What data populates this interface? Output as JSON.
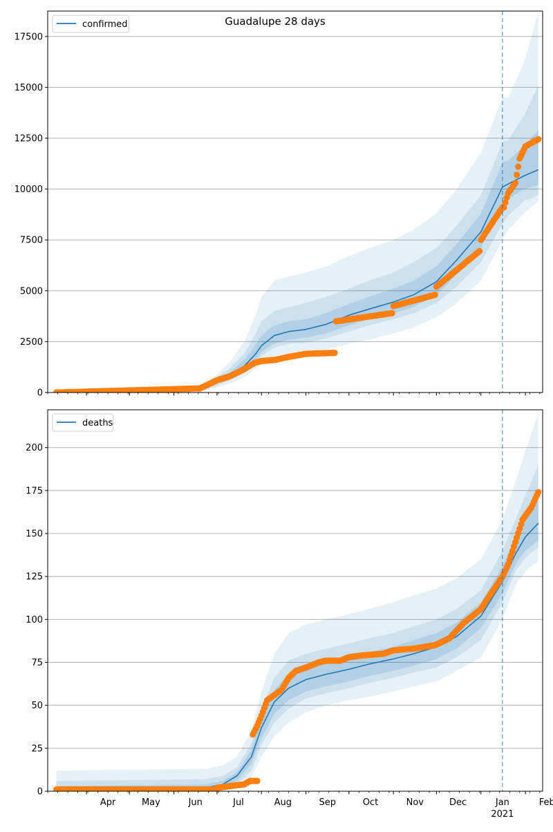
{
  "figure": {
    "title": "Guadalupe 28 days"
  },
  "chart_data": [
    {
      "id": "confirmed",
      "type": "line",
      "legend": {
        "label": "confirmed",
        "placement": "top-left"
      },
      "grid": "horizontal",
      "ylim": [
        0,
        18750
      ],
      "yticks": [
        0,
        2500,
        5000,
        7500,
        10000,
        12500,
        15000,
        17500
      ],
      "ytick_labels": [
        "0",
        "2500",
        "5000",
        "7500",
        "10000",
        "12500",
        "15000",
        "17500"
      ],
      "forecast_start": "2021-01-16",
      "model_median": {
        "x": [
          "2020-03-11",
          "2020-06-01",
          "2020-06-23",
          "2020-07-01",
          "2020-07-10",
          "2020-07-20",
          "2020-07-28",
          "2020-08-01",
          "2020-08-10",
          "2020-08-20",
          "2020-09-01",
          "2020-09-15",
          "2020-10-01",
          "2020-10-15",
          "2020-11-01",
          "2020-11-15",
          "2020-12-01",
          "2020-12-15",
          "2021-01-01",
          "2021-01-16",
          "2021-01-20",
          "2021-01-31",
          "2021-02-10"
        ],
        "y": [
          0,
          50,
          250,
          550,
          850,
          1300,
          1900,
          2300,
          2800,
          3000,
          3100,
          3350,
          3800,
          4100,
          4450,
          4800,
          5450,
          6500,
          7900,
          10100,
          10250,
          10650,
          10950
        ]
      },
      "bands": [
        {
          "level": "outer",
          "x": [
            "2020-03-11",
            "2020-06-01",
            "2020-06-23",
            "2020-07-01",
            "2020-07-10",
            "2020-07-20",
            "2020-07-28",
            "2020-08-01",
            "2020-08-10",
            "2020-08-20",
            "2020-09-01",
            "2020-09-15",
            "2020-10-01",
            "2020-10-15",
            "2020-11-01",
            "2020-11-15",
            "2020-12-01",
            "2020-12-15",
            "2021-01-01",
            "2021-01-16",
            "2021-01-20",
            "2021-01-31",
            "2021-02-10"
          ],
          "upper": [
            100,
            200,
            450,
            900,
            1500,
            2500,
            3800,
            4700,
            5500,
            5700,
            5900,
            6200,
            6700,
            7100,
            7500,
            8000,
            8800,
            10000,
            11800,
            14500,
            14500,
            16200,
            18700
          ],
          "lower": [
            0,
            0,
            100,
            250,
            450,
            750,
            1200,
            1500,
            1800,
            1900,
            1950,
            2100,
            2400,
            2600,
            2900,
            3200,
            3700,
            4400,
            5500,
            7500,
            8000,
            8800,
            9400
          ]
        },
        {
          "level": "middle",
          "x": [
            "2020-03-11",
            "2020-06-01",
            "2020-06-23",
            "2020-07-01",
            "2020-07-10",
            "2020-07-20",
            "2020-07-28",
            "2020-08-01",
            "2020-08-10",
            "2020-08-20",
            "2020-09-01",
            "2020-09-15",
            "2020-10-01",
            "2020-10-15",
            "2020-11-01",
            "2020-11-15",
            "2020-12-01",
            "2020-12-15",
            "2021-01-01",
            "2021-01-16",
            "2021-01-20",
            "2021-01-31",
            "2021-02-10"
          ],
          "upper": [
            60,
            120,
            350,
            750,
            1200,
            1900,
            2900,
            3500,
            4000,
            4200,
            4400,
            4700,
            5100,
            5500,
            5900,
            6400,
            7100,
            8200,
            9700,
            12300,
            12400,
            13600,
            15100
          ],
          "lower": [
            0,
            0,
            150,
            350,
            600,
            950,
            1450,
            1800,
            2200,
            2400,
            2450,
            2650,
            3000,
            3300,
            3600,
            3900,
            4400,
            5200,
            6400,
            8300,
            8700,
            9400,
            9700
          ]
        },
        {
          "level": "inner",
          "x": [
            "2020-03-11",
            "2020-06-01",
            "2020-06-23",
            "2020-07-01",
            "2020-07-10",
            "2020-07-20",
            "2020-07-28",
            "2020-08-01",
            "2020-08-10",
            "2020-08-20",
            "2020-09-01",
            "2020-09-15",
            "2020-10-01",
            "2020-10-15",
            "2020-11-01",
            "2020-11-15",
            "2020-12-01",
            "2020-12-15",
            "2021-01-01",
            "2021-01-16",
            "2021-01-20",
            "2021-01-31",
            "2021-02-10"
          ],
          "upper": [
            30,
            80,
            300,
            650,
            1000,
            1600,
            2350,
            2800,
            3300,
            3500,
            3600,
            3900,
            4350,
            4700,
            5100,
            5500,
            6200,
            7300,
            8800,
            11300,
            11400,
            12100,
            12900
          ],
          "lower": [
            0,
            20,
            200,
            450,
            700,
            1100,
            1600,
            2000,
            2400,
            2600,
            2700,
            2900,
            3300,
            3600,
            3900,
            4200,
            4800,
            5800,
            7100,
            9300,
            9500,
            10000,
            10200
          ]
        }
      ],
      "observed": {
        "segments": [
          {
            "start": "2020-03-11",
            "end": "2020-06-18",
            "y_start": 0,
            "y_end": 200
          },
          {
            "start": "2020-06-19",
            "end": "2020-09-21",
            "y_start": 200,
            "y_end": 1950,
            "knots": [
              [
                "2020-06-19",
                200
              ],
              [
                "2020-07-01",
                600
              ],
              [
                "2020-07-10",
                800
              ],
              [
                "2020-07-20",
                1150
              ],
              [
                "2020-07-27",
                1450
              ],
              [
                "2020-08-01",
                1550
              ],
              [
                "2020-08-10",
                1600
              ],
              [
                "2020-08-20",
                1750
              ],
              [
                "2020-09-01",
                1900
              ],
              [
                "2020-09-21",
                1950
              ]
            ]
          },
          {
            "start": "2020-09-22",
            "end": "2020-10-31",
            "y_start": 3500,
            "y_end": 3900
          },
          {
            "start": "2020-11-01",
            "end": "2020-11-30",
            "y_start": 4250,
            "y_end": 4800
          },
          {
            "start": "2020-12-01",
            "end": "2020-12-31",
            "y_start": 5200,
            "y_end": 6950
          },
          {
            "start": "2021-01-01",
            "end": "2021-01-16",
            "y_start": 7500,
            "y_end": 9100
          },
          {
            "start": "2021-01-17",
            "end": "2021-02-10",
            "y_start": 9100,
            "y_end": 12450,
            "knots": [
              [
                "2021-01-17",
                9100
              ],
              [
                "2021-01-20",
                9800
              ],
              [
                "2021-01-25",
                10300
              ],
              [
                "2021-01-28",
                11500
              ],
              [
                "2021-02-01",
                12100
              ],
              [
                "2021-02-10",
                12450
              ]
            ]
          }
        ]
      }
    },
    {
      "id": "deaths",
      "type": "line",
      "legend": {
        "label": "deaths",
        "placement": "top-left"
      },
      "grid": "horizontal",
      "ylim": [
        0,
        222
      ],
      "yticks": [
        0,
        25,
        50,
        75,
        100,
        125,
        150,
        175,
        200
      ],
      "ytick_labels": [
        "0",
        "25",
        "50",
        "75",
        "100",
        "125",
        "150",
        "175",
        "200"
      ],
      "xtick_labels": [
        "Apr",
        "May",
        "Jun",
        "Jul",
        "Aug",
        "Sep",
        "Oct",
        "Nov",
        "Dec",
        "Jan",
        "Feb"
      ],
      "xtick_dates": [
        "2020-04-01",
        "2020-05-01",
        "2020-06-01",
        "2020-07-01",
        "2020-08-01",
        "2020-09-01",
        "2020-10-01",
        "2020-11-01",
        "2020-12-01",
        "2021-01-01",
        "2021-02-01"
      ],
      "year_label": "2021",
      "xlim": [
        "2020-03-05",
        "2021-02-13"
      ],
      "forecast_start": "2021-01-16",
      "model_median": {
        "x": [
          "2020-03-11",
          "2020-06-23",
          "2020-07-05",
          "2020-07-15",
          "2020-07-25",
          "2020-08-01",
          "2020-08-10",
          "2020-08-20",
          "2020-09-01",
          "2020-09-15",
          "2020-10-01",
          "2020-10-15",
          "2020-11-01",
          "2020-11-15",
          "2020-12-01",
          "2020-12-15",
          "2021-01-01",
          "2021-01-16",
          "2021-01-25",
          "2021-02-01",
          "2021-02-10"
        ],
        "y": [
          1,
          2,
          4,
          9,
          20,
          37,
          52,
          60,
          65,
          68,
          71,
          74,
          77,
          80,
          84,
          90,
          102,
          122,
          138,
          148,
          156
        ]
      },
      "bands": [
        {
          "level": "outer",
          "x": [
            "2020-03-11",
            "2020-06-23",
            "2020-07-05",
            "2020-07-15",
            "2020-07-25",
            "2020-08-01",
            "2020-08-10",
            "2020-08-20",
            "2020-09-01",
            "2020-09-15",
            "2020-10-01",
            "2020-10-15",
            "2020-11-01",
            "2020-11-15",
            "2020-12-01",
            "2020-12-15",
            "2021-01-01",
            "2021-01-16",
            "2021-01-25",
            "2021-02-01",
            "2021-02-10"
          ],
          "upper": [
            12,
            13,
            15,
            20,
            35,
            58,
            80,
            92,
            97,
            100,
            103,
            106,
            110,
            114,
            118,
            124,
            135,
            158,
            180,
            198,
            220
          ],
          "lower": [
            0,
            0,
            0,
            2,
            8,
            20,
            32,
            40,
            46,
            50,
            53,
            55,
            58,
            61,
            64,
            70,
            78,
            100,
            120,
            128,
            134
          ]
        },
        {
          "level": "middle",
          "x": [
            "2020-03-11",
            "2020-06-23",
            "2020-07-05",
            "2020-07-15",
            "2020-07-25",
            "2020-08-01",
            "2020-08-10",
            "2020-08-20",
            "2020-09-01",
            "2020-09-15",
            "2020-10-01",
            "2020-10-15",
            "2020-11-01",
            "2020-11-15",
            "2020-12-01",
            "2020-12-15",
            "2021-01-01",
            "2021-01-16",
            "2021-01-25",
            "2021-02-01",
            "2021-02-10"
          ],
          "upper": [
            6,
            7,
            9,
            14,
            28,
            48,
            66,
            76,
            80,
            83,
            86,
            89,
            92,
            96,
            100,
            106,
            117,
            140,
            158,
            172,
            190
          ],
          "lower": [
            0,
            0,
            1,
            4,
            12,
            27,
            40,
            48,
            54,
            57,
            60,
            63,
            66,
            69,
            72,
            78,
            88,
            110,
            128,
            136,
            142
          ]
        },
        {
          "level": "inner",
          "x": [
            "2020-03-11",
            "2020-06-23",
            "2020-07-05",
            "2020-07-15",
            "2020-07-25",
            "2020-08-01",
            "2020-08-10",
            "2020-08-20",
            "2020-09-01",
            "2020-09-15",
            "2020-10-01",
            "2020-10-15",
            "2020-11-01",
            "2020-11-15",
            "2020-12-01",
            "2020-12-15",
            "2021-01-01",
            "2021-01-16",
            "2021-01-25",
            "2021-02-01",
            "2021-02-10"
          ],
          "upper": [
            3,
            4,
            6,
            11,
            24,
            43,
            59,
            68,
            72,
            75,
            78,
            81,
            84,
            88,
            92,
            98,
            110,
            131,
            148,
            160,
            172
          ],
          "lower": [
            0,
            1,
            2,
            6,
            16,
            31,
            45,
            53,
            58,
            61,
            64,
            67,
            70,
            73,
            77,
            83,
            95,
            115,
            132,
            140,
            146
          ]
        }
      ],
      "observed": {
        "segments": [
          {
            "start": "2020-03-11",
            "end": "2020-06-30",
            "y_start": 1,
            "y_end": 1
          },
          {
            "start": "2020-07-01",
            "end": "2020-07-29",
            "y_start": 2,
            "y_end": 6,
            "knots": [
              [
                "2020-07-01",
                2
              ],
              [
                "2020-07-10",
                3
              ],
              [
                "2020-07-20",
                4
              ],
              [
                "2020-07-24",
                6
              ],
              [
                "2020-07-29",
                6
              ]
            ]
          },
          {
            "start": "2020-07-26",
            "end": "2021-02-10",
            "y_start": 33,
            "y_end": 174,
            "knots": [
              [
                "2020-07-26",
                33
              ],
              [
                "2020-07-29",
                38
              ],
              [
                "2020-08-01",
                44
              ],
              [
                "2020-08-05",
                53
              ],
              [
                "2020-08-10",
                56
              ],
              [
                "2020-08-15",
                59
              ],
              [
                "2020-08-20",
                66
              ],
              [
                "2020-08-25",
                70
              ],
              [
                "2020-09-01",
                72
              ],
              [
                "2020-09-10",
                75
              ],
              [
                "2020-09-15",
                76
              ],
              [
                "2020-09-25",
                76
              ],
              [
                "2020-10-01",
                78
              ],
              [
                "2020-10-10",
                79
              ],
              [
                "2020-10-25",
                80
              ],
              [
                "2020-11-01",
                82
              ],
              [
                "2020-11-15",
                83
              ],
              [
                "2020-11-30",
                85
              ],
              [
                "2020-12-10",
                89
              ],
              [
                "2020-12-20",
                98
              ],
              [
                "2021-01-01",
                106
              ],
              [
                "2021-01-08",
                115
              ],
              [
                "2021-01-16",
                125
              ],
              [
                "2021-01-20",
                132
              ],
              [
                "2021-01-25",
                145
              ],
              [
                "2021-01-30",
                158
              ],
              [
                "2021-02-05",
                165
              ],
              [
                "2021-02-10",
                174
              ]
            ]
          }
        ]
      }
    }
  ],
  "colors": {
    "median": "#1f77b4",
    "band": "#1f77b4",
    "observed": "#ff7f0e",
    "grid": "#b0b0b0",
    "forecast_line": "#1f77b4"
  }
}
